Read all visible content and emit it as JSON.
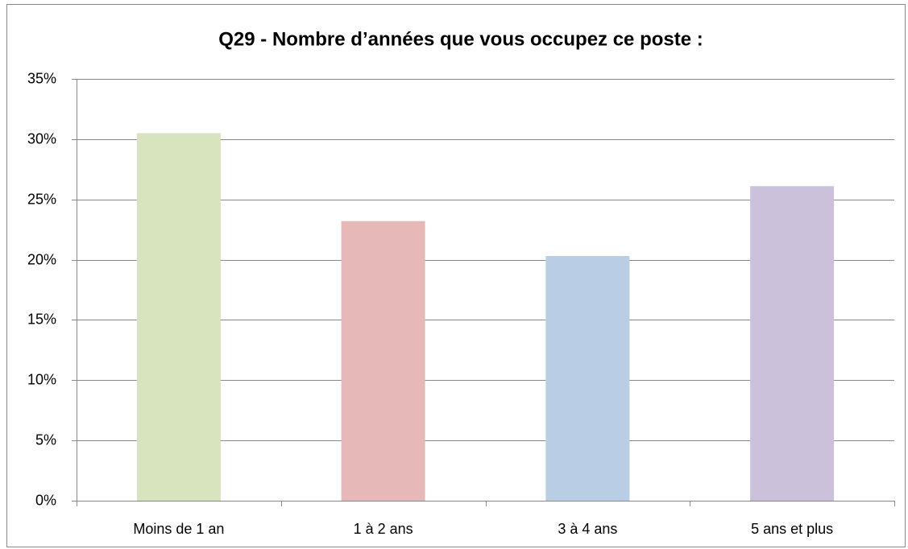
{
  "chart_data": {
    "type": "bar",
    "title": "Q29 - Nombre d’années que vous occupez ce poste :",
    "categories": [
      "Moins de 1 an",
      "1 à 2 ans",
      "3 à 4 ans",
      "5 ans et plus"
    ],
    "values": [
      30.5,
      23.2,
      20.3,
      26.1
    ],
    "colors": [
      "#d7e4bd",
      "#e6b9b8",
      "#b9cde5",
      "#ccc1da"
    ],
    "ylim": [
      0,
      35
    ],
    "yticks": [
      {
        "value": 0,
        "label": "0%"
      },
      {
        "value": 5,
        "label": "5%"
      },
      {
        "value": 10,
        "label": "10%"
      },
      {
        "value": 15,
        "label": "15%"
      },
      {
        "value": 20,
        "label": "20%"
      },
      {
        "value": 25,
        "label": "25%"
      },
      {
        "value": 30,
        "label": "30%"
      },
      {
        "value": 35,
        "label": "35%"
      }
    ],
    "grid": true
  }
}
